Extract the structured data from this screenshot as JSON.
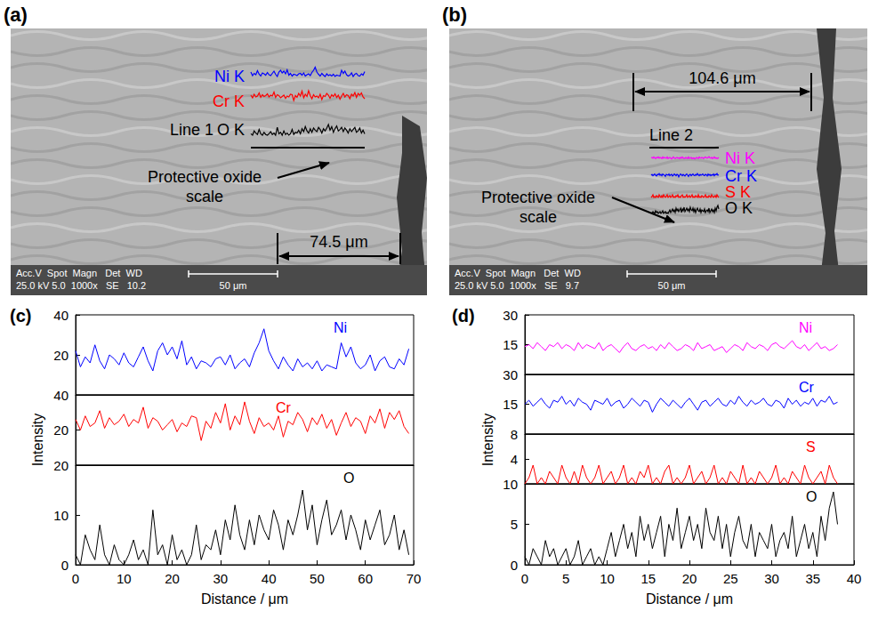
{
  "micrographs": [
    {
      "panel": "(a)",
      "line_label": "Line 1",
      "elements": [
        {
          "name": "Ni K",
          "color": "#0000ff"
        },
        {
          "name": "Cr K",
          "color": "#ff0000"
        },
        {
          "name": "O K",
          "color": "#000000"
        }
      ],
      "annotation": "Protective oxide scale",
      "distance_label": "74.5 μm",
      "info_header": "Acc.V  Spot  Magn   Det  WD",
      "info_values": "25.0 kV 5.0  1000x   SE   10.2",
      "scale_bar": "50 μm"
    },
    {
      "panel": "(b)",
      "line_label": "Line 2",
      "elements": [
        {
          "name": "Ni K",
          "color": "#ff00ff"
        },
        {
          "name": "Cr K",
          "color": "#0000ff"
        },
        {
          "name": "S K",
          "color": "#ff0000"
        },
        {
          "name": "O K",
          "color": "#000000"
        }
      ],
      "annotation": "Protective oxide scale",
      "distance_label": "104.6 μm",
      "info_header": "Acc.V  Spot  Magn   Det  WD",
      "info_values": "25.0 kV 5.0  1000x   SE   9.7",
      "scale_bar": "50 μm"
    }
  ],
  "chart_data": [
    {
      "panel": "(c)",
      "type": "line",
      "x_label": "Distance / μm",
      "y_label": "Intensity",
      "grid": false,
      "xlim": [
        0,
        70
      ],
      "xticks": [
        0,
        10,
        20,
        30,
        40,
        50,
        60,
        70
      ],
      "x": [
        0,
        1,
        2,
        3,
        4,
        5,
        6,
        7,
        8,
        9,
        10,
        11,
        12,
        13,
        14,
        15,
        16,
        17,
        18,
        19,
        20,
        21,
        22,
        23,
        24,
        25,
        26,
        27,
        28,
        29,
        30,
        31,
        32,
        33,
        34,
        35,
        36,
        37,
        38,
        39,
        40,
        41,
        42,
        43,
        44,
        45,
        46,
        47,
        48,
        49,
        50,
        51,
        52,
        53,
        54,
        55,
        56,
        57,
        58,
        59,
        60,
        61,
        62,
        63,
        64,
        65,
        66,
        67,
        68,
        69
      ],
      "series": [
        {
          "name": "Ni",
          "color": "#0000ff",
          "ylim": [
            0,
            40
          ],
          "yticks": [
            20,
            40
          ],
          "values": [
            22,
            14,
            19,
            16,
            25,
            17,
            13,
            20,
            18,
            15,
            21,
            16,
            14,
            19,
            24,
            17,
            12,
            22,
            26,
            20,
            24,
            18,
            27,
            15,
            19,
            13,
            17,
            16,
            14,
            18,
            19,
            15,
            20,
            13,
            16,
            18,
            14,
            21,
            26,
            33,
            22,
            17,
            13,
            19,
            15,
            12,
            18,
            14,
            16,
            13,
            17,
            12,
            15,
            14,
            13,
            26,
            19,
            24,
            16,
            13,
            15,
            20,
            12,
            17,
            19,
            14,
            13,
            18,
            15,
            23
          ]
        },
        {
          "name": "Cr",
          "color": "#ff0000",
          "ylim": [
            0,
            40
          ],
          "yticks": [
            20,
            40
          ],
          "values": [
            26,
            20,
            28,
            22,
            24,
            31,
            21,
            27,
            23,
            25,
            29,
            22,
            26,
            24,
            33,
            21,
            27,
            25,
            20,
            23,
            26,
            19,
            24,
            22,
            28,
            27,
            14,
            25,
            21,
            30,
            24,
            35,
            20,
            28,
            23,
            36,
            25,
            18,
            27,
            22,
            24,
            20,
            28,
            16,
            25,
            23,
            30,
            26,
            19,
            27,
            23,
            29,
            21,
            26,
            17,
            24,
            30,
            22,
            27,
            25,
            18,
            28,
            24,
            32,
            21,
            30,
            26,
            31,
            22,
            18
          ]
        },
        {
          "name": "O",
          "color": "#000000",
          "ylim": [
            0,
            20
          ],
          "yticks": [
            0,
            10,
            20
          ],
          "values": [
            2,
            0,
            6,
            3,
            1,
            8,
            2,
            0,
            4,
            1,
            0,
            2,
            5,
            1,
            3,
            0,
            11,
            2,
            4,
            0,
            6,
            1,
            3,
            0,
            2,
            8,
            1,
            4,
            3,
            7,
            2,
            9,
            5,
            12,
            6,
            3,
            9,
            4,
            10,
            7,
            5,
            11,
            8,
            3,
            9,
            6,
            10,
            15,
            7,
            12,
            4,
            9,
            13,
            6,
            8,
            11,
            5,
            10,
            7,
            3,
            9,
            5,
            8,
            11,
            4,
            6,
            10,
            3,
            7,
            2
          ]
        }
      ]
    },
    {
      "panel": "(d)",
      "type": "line",
      "x_label": "Distance / μm",
      "y_label": "Intensity",
      "grid": false,
      "xlim": [
        0,
        40
      ],
      "xticks": [
        0,
        5,
        10,
        15,
        20,
        25,
        30,
        35,
        40
      ],
      "x": [
        0,
        0.5,
        1,
        1.5,
        2,
        2.5,
        3,
        3.5,
        4,
        4.5,
        5,
        5.5,
        6,
        6.5,
        7,
        7.5,
        8,
        8.5,
        9,
        9.5,
        10,
        10.5,
        11,
        11.5,
        12,
        12.5,
        13,
        13.5,
        14,
        14.5,
        15,
        15.5,
        16,
        16.5,
        17,
        17.5,
        18,
        18.5,
        19,
        19.5,
        20,
        20.5,
        21,
        21.5,
        22,
        22.5,
        23,
        23.5,
        24,
        24.5,
        25,
        25.5,
        26,
        26.5,
        27,
        27.5,
        28,
        28.5,
        29,
        29.5,
        30,
        30.5,
        31,
        31.5,
        32,
        32.5,
        33,
        33.5,
        34,
        34.5,
        35,
        35.5,
        36,
        36.5,
        37,
        37.5,
        38
      ],
      "series": [
        {
          "name": "Ni",
          "color": "#ff00ff",
          "ylim": [
            0,
            30
          ],
          "yticks": [
            15,
            30
          ],
          "values": [
            14,
            15,
            13,
            16,
            14,
            12,
            15,
            14,
            16,
            13,
            15,
            14,
            12,
            16,
            13,
            15,
            14,
            13,
            16,
            12,
            14,
            15,
            13,
            11,
            14,
            16,
            13,
            12,
            14,
            15,
            13,
            14,
            12,
            15,
            13,
            16,
            14,
            12,
            13,
            15,
            14,
            12,
            16,
            13,
            14,
            15,
            12,
            13,
            14,
            11,
            13,
            15,
            14,
            12,
            16,
            14,
            13,
            15,
            14,
            12,
            15,
            16,
            14,
            13,
            15,
            17,
            14,
            13,
            15,
            12,
            14,
            16,
            13,
            14,
            12,
            13,
            15
          ]
        },
        {
          "name": "Cr",
          "color": "#0000ff",
          "ylim": [
            0,
            30
          ],
          "yticks": [
            15,
            30
          ],
          "values": [
            15,
            17,
            14,
            16,
            18,
            15,
            13,
            17,
            16,
            19,
            15,
            17,
            14,
            18,
            16,
            15,
            12,
            17,
            16,
            15,
            18,
            14,
            16,
            17,
            13,
            15,
            18,
            16,
            14,
            17,
            16,
            11,
            15,
            18,
            16,
            14,
            17,
            15,
            13,
            16,
            18,
            15,
            12,
            16,
            17,
            14,
            16,
            18,
            15,
            14,
            17,
            15,
            19,
            16,
            14,
            17,
            15,
            16,
            18,
            15,
            14,
            17,
            16,
            13,
            18,
            15,
            17,
            14,
            16,
            15,
            18,
            14,
            17,
            16,
            19,
            15,
            16
          ]
        },
        {
          "name": "S",
          "color": "#ff0000",
          "ylim": [
            0,
            8
          ],
          "yticks": [
            4,
            8
          ],
          "values": [
            0,
            1,
            3,
            0,
            1,
            0,
            2,
            1,
            0,
            3,
            1,
            0,
            2,
            0,
            3,
            1,
            0,
            1,
            3,
            0,
            1,
            2,
            0,
            1,
            3,
            0,
            1,
            0,
            2,
            1,
            3,
            0,
            1,
            0,
            2,
            3,
            0,
            1,
            0,
            1,
            3,
            0,
            1,
            2,
            0,
            1,
            3,
            0,
            1,
            0,
            2,
            1,
            0,
            3,
            0,
            1,
            0,
            2,
            1,
            0,
            1,
            3,
            0,
            1,
            0,
            2,
            1,
            0,
            3,
            1,
            0,
            1,
            2,
            0,
            3,
            1,
            0
          ]
        },
        {
          "name": "O",
          "color": "#000000",
          "ylim": [
            0,
            10
          ],
          "yticks": [
            0,
            5,
            10
          ],
          "values": [
            1,
            0,
            2,
            1,
            0,
            3,
            1,
            2,
            0,
            1,
            2,
            0,
            1,
            3,
            0,
            1,
            2,
            0,
            1,
            0,
            2,
            4,
            1,
            3,
            5,
            2,
            4,
            1,
            6,
            3,
            5,
            2,
            4,
            6,
            1,
            5,
            3,
            7,
            2,
            4,
            6,
            3,
            5,
            2,
            7,
            4,
            3,
            6,
            2,
            5,
            1,
            4,
            6,
            3,
            2,
            5,
            1,
            4,
            3,
            2,
            5,
            1,
            3,
            4,
            2,
            6,
            1,
            3,
            5,
            2,
            4,
            1,
            6,
            3,
            7,
            9,
            5
          ]
        }
      ]
    }
  ]
}
